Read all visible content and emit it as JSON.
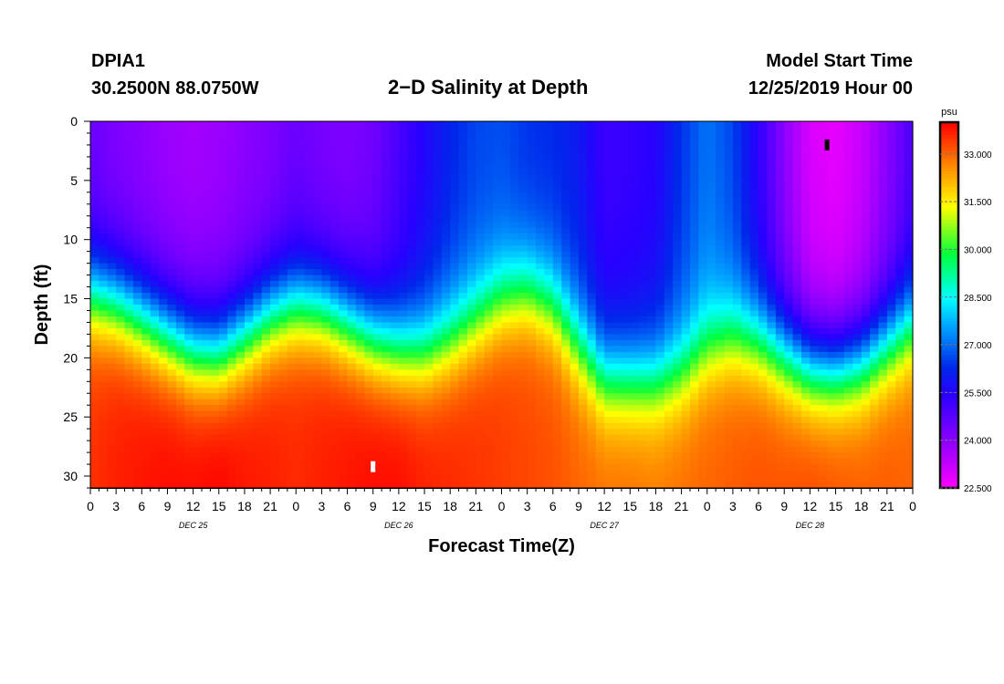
{
  "header": {
    "station": "DPIA1",
    "coordinates": "30.2500N 88.0750W",
    "title": "2−D Salinity at Depth",
    "model_start_label": "Model Start Time",
    "model_start_value": "12/25/2019 Hour 00"
  },
  "chart_data": {
    "type": "heatmap",
    "title": "2-D Salinity at Depth",
    "xlabel": "Forecast Time(Z)",
    "ylabel": "Depth (ft)",
    "x_unit": "hours since model start",
    "xlim": [
      0,
      96
    ],
    "ylim": [
      0,
      31
    ],
    "x_ticks": [
      {
        "hour": 0,
        "label": "0"
      },
      {
        "hour": 3,
        "label": "3"
      },
      {
        "hour": 6,
        "label": "6"
      },
      {
        "hour": 9,
        "label": "9"
      },
      {
        "hour": 12,
        "label": "12"
      },
      {
        "hour": 15,
        "label": "15"
      },
      {
        "hour": 18,
        "label": "18"
      },
      {
        "hour": 21,
        "label": "21"
      },
      {
        "hour": 24,
        "label": "0"
      },
      {
        "hour": 27,
        "label": "3"
      },
      {
        "hour": 30,
        "label": "6"
      },
      {
        "hour": 33,
        "label": "9"
      },
      {
        "hour": 36,
        "label": "12"
      },
      {
        "hour": 39,
        "label": "15"
      },
      {
        "hour": 42,
        "label": "18"
      },
      {
        "hour": 45,
        "label": "21"
      },
      {
        "hour": 48,
        "label": "0"
      },
      {
        "hour": 51,
        "label": "3"
      },
      {
        "hour": 54,
        "label": "6"
      },
      {
        "hour": 57,
        "label": "9"
      },
      {
        "hour": 60,
        "label": "12"
      },
      {
        "hour": 63,
        "label": "15"
      },
      {
        "hour": 66,
        "label": "18"
      },
      {
        "hour": 69,
        "label": "21"
      },
      {
        "hour": 72,
        "label": "0"
      },
      {
        "hour": 75,
        "label": "3"
      },
      {
        "hour": 78,
        "label": "6"
      },
      {
        "hour": 81,
        "label": "9"
      },
      {
        "hour": 84,
        "label": "12"
      },
      {
        "hour": 87,
        "label": "15"
      },
      {
        "hour": 90,
        "label": "18"
      },
      {
        "hour": 93,
        "label": "21"
      },
      {
        "hour": 96,
        "label": "0"
      }
    ],
    "date_labels": [
      {
        "hour": 12,
        "label": "DEC 25"
      },
      {
        "hour": 36,
        "label": "DEC 26"
      },
      {
        "hour": 60,
        "label": "DEC 27"
      },
      {
        "hour": 84,
        "label": "DEC 28"
      }
    ],
    "y_ticks": [
      0,
      5,
      10,
      15,
      20,
      25,
      30
    ],
    "colorbar": {
      "unit": "psu",
      "min": 22.5,
      "max": 34.0,
      "tick_values": [
        22.5,
        24.0,
        25.5,
        27.0,
        28.5,
        30.0,
        31.5,
        33.0
      ],
      "tick_labels": [
        "22.500",
        "24.000",
        "25.500",
        "27.000",
        "28.500",
        "30.000",
        "31.500",
        "33.000"
      ]
    },
    "time_hours": [
      0,
      3,
      6,
      9,
      12,
      15,
      18,
      21,
      24,
      27,
      30,
      33,
      36,
      39,
      42,
      45,
      48,
      51,
      54,
      57,
      60,
      63,
      66,
      69,
      72,
      75,
      78,
      81,
      84,
      87,
      90,
      93,
      96
    ],
    "halocline_depth_ft": [
      14.8,
      15.5,
      16.8,
      18.2,
      19.5,
      19.8,
      18.3,
      16.6,
      15.7,
      16.0,
      17.2,
      18.6,
      19.4,
      19.6,
      18.6,
      17.0,
      15.3,
      14.6,
      15.8,
      19.0,
      21.8,
      22.0,
      22.0,
      21.2,
      19.3,
      18.3,
      18.6,
      19.8,
      21.0,
      21.2,
      20.6,
      19.0,
      17.3
    ],
    "surface_salinity_psu": [
      24.5,
      24.2,
      24.0,
      23.8,
      23.7,
      23.8,
      24.0,
      24.2,
      24.5,
      24.3,
      24.2,
      24.4,
      25.0,
      25.6,
      26.2,
      26.6,
      26.7,
      26.4,
      26.3,
      26.0,
      25.2,
      25.3,
      25.5,
      26.4,
      27.1,
      26.6,
      25.4,
      24.0,
      23.0,
      22.8,
      23.2,
      24.0,
      25.0
    ],
    "bottom_salinity_psu": [
      33.5,
      33.7,
      33.8,
      33.9,
      33.9,
      34.0,
      33.8,
      33.7,
      33.6,
      33.7,
      33.8,
      33.9,
      33.9,
      33.7,
      33.6,
      33.5,
      33.4,
      33.3,
      33.2,
      33.0,
      32.9,
      32.9,
      32.8,
      32.9,
      33.0,
      33.1,
      33.2,
      33.2,
      33.3,
      33.2,
      33.1,
      33.1,
      33.0
    ],
    "markers": [
      {
        "hour": 33,
        "depth_ft": 29.2,
        "color": "#ffffff"
      },
      {
        "hour": 86,
        "depth_ft": 2.0,
        "color": "#000000"
      }
    ]
  }
}
